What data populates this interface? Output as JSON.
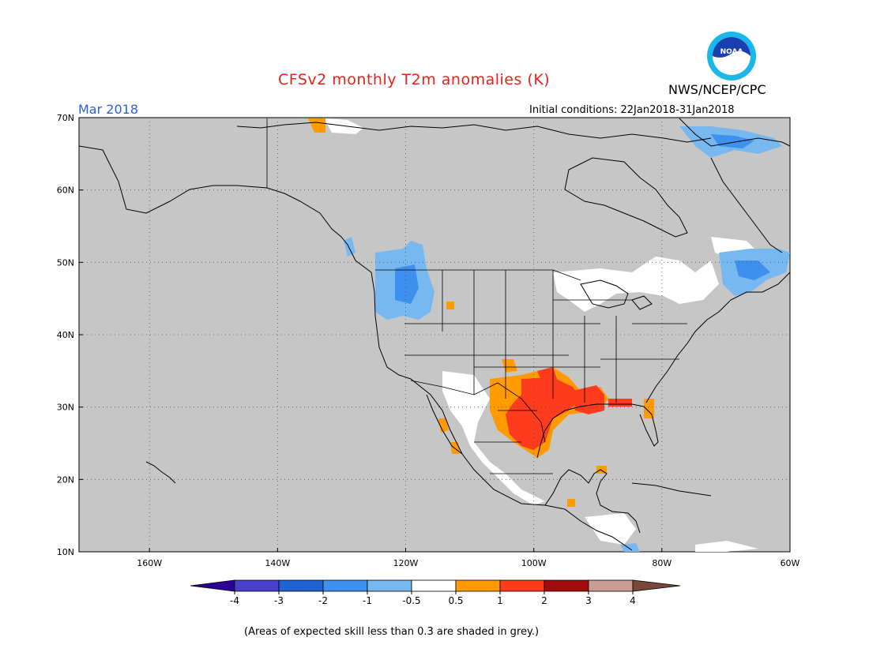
{
  "header": {
    "title": "CFSv2 monthly T2m anomalies (K)",
    "org": "NWS/NCEP/CPC",
    "logo_text": "NOAA",
    "period": "Mar 2018",
    "initial_conditions": "Initial conditions: 22Jan2018-31Jan2018"
  },
  "map": {
    "lon_range": [
      -171,
      -60
    ],
    "lat_range": [
      10,
      70
    ],
    "background": "#c6c6c6",
    "lat_labels": [
      "70N",
      "60N",
      "50N",
      "40N",
      "30N",
      "20N",
      "10N"
    ],
    "lon_labels": [
      "160W",
      "140W",
      "120W",
      "100W",
      "80W",
      "60W"
    ],
    "lat_values": [
      70,
      60,
      50,
      40,
      30,
      20,
      10
    ],
    "lon_values": [
      -160,
      -140,
      -120,
      -100,
      -80,
      -60
    ]
  },
  "colorbar": {
    "labels": [
      "-4",
      "-3",
      "-2",
      "-1",
      "-0.5",
      "0.5",
      "1",
      "2",
      "3",
      "4"
    ],
    "colors": [
      "#2d0096",
      "#4a3fcc",
      "#1e64d2",
      "#3d90ee",
      "#78b8f0",
      "#ffffff",
      "#ff9a00",
      "#ff3b1e",
      "#a00c0c",
      "#c89e94",
      "#7a4838"
    ]
  },
  "footnote": "(Areas of expected skill less than 0.3 are shaded in grey.)"
}
